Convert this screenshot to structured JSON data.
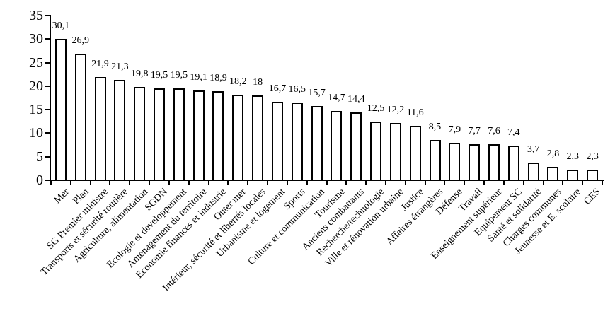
{
  "chart_data": {
    "type": "bar",
    "title": "",
    "xlabel": "",
    "ylabel": "",
    "categories": [
      "Mer",
      "Plan",
      "SG Premier ministre",
      "Transports et sécurité routière",
      "Agriculture, alimentation",
      "SGDN",
      "Ecologie et developpement",
      "Aménagement du territoire",
      "Economie finances et industrie",
      "Outer mer",
      "Intérieur, sécurité et libertés locales",
      "Urbanisme et logement",
      "Sports",
      "Culture et communication",
      "Tourisme",
      "Anciens combattants",
      "Recherche/technologie",
      "Ville et rénovation urbaine",
      "Justice",
      "Affaires étrangères",
      "Défense",
      "Travail",
      "Enseignement supérieur",
      "Equipement SC",
      "Santé et solidarité",
      "Charges communes",
      "Jeunesse et E. scolaire",
      "CES"
    ],
    "values": [
      30.1,
      26.9,
      21.9,
      21.3,
      19.8,
      19.5,
      19.5,
      19.1,
      18.9,
      18.2,
      18,
      16.7,
      16.5,
      15.7,
      14.7,
      14.4,
      12.5,
      12.2,
      11.6,
      8.5,
      7.9,
      7.7,
      7.6,
      7.4,
      3.7,
      2.8,
      2.3,
      2.3
    ],
    "value_labels": [
      "30,1",
      "26,9",
      "21,9",
      "21,3",
      "19,8",
      "19,5",
      "19,5",
      "19,1",
      "18,9",
      "18,2",
      "18",
      "16,7",
      "16,5",
      "15,7",
      "14,7",
      "14,4",
      "12,5",
      "12,2",
      "11,6",
      "8,5",
      "7,9",
      "7,7",
      "7,6",
      "7,4",
      "3,7",
      "2,8",
      "2,3",
      "2,3"
    ],
    "ylim": [
      0,
      35
    ],
    "yticks": [
      0,
      5,
      10,
      15,
      20,
      25,
      30,
      35
    ],
    "grid": false,
    "legend": false,
    "colors": {
      "background": "#ffffff",
      "bar_fill": "#ffffff",
      "bar_border": "#000000",
      "axis": "#000000",
      "text": "#000000"
    }
  }
}
